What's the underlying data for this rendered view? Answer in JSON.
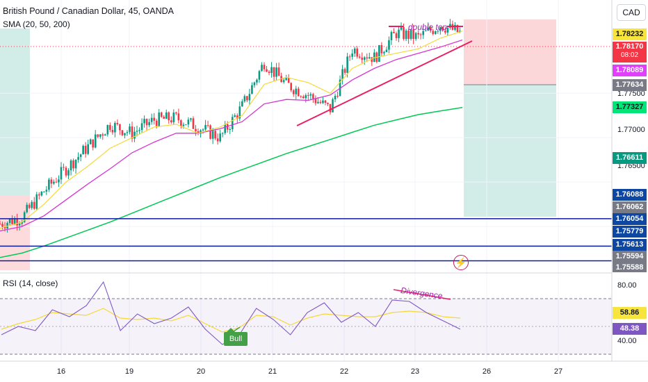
{
  "chart_data": {
    "type": "line",
    "title": "British Pound / Canadian Dollar, 45, OANDA",
    "indicator_label": "SMA (20, 50, 200)",
    "currency": "CAD",
    "y_range": [
      1.755,
      1.7855
    ],
    "x_labels": [
      "16",
      "19",
      "20",
      "21",
      "22",
      "23",
      "26",
      "27"
    ],
    "price_axis_ticks": [
      "1.77500",
      "1.77000",
      "1.76500"
    ],
    "price_tags": [
      {
        "value": "1.78232",
        "color": "#f7e43c",
        "text_color": "#131722"
      },
      {
        "value": "1.78170",
        "sub": "08:02",
        "color": "#f23645",
        "text_color": "#ffffff"
      },
      {
        "value": "1.78089",
        "color": "#e040fb",
        "text_color": "#ffffff"
      },
      {
        "value": "1.77634",
        "color": "#787b86",
        "text_color": "#ffffff"
      },
      {
        "value": "1.77327",
        "color": "#00e676",
        "text_color": "#131722"
      },
      {
        "value": "1.76611",
        "color": "#089981",
        "text_color": "#ffffff"
      },
      {
        "value": "1.76088",
        "color": "#0d47a1",
        "text_color": "#ffffff"
      },
      {
        "value": "1.76062",
        "color": "#787b86",
        "text_color": "#ffffff"
      },
      {
        "value": "1.76054",
        "color": "#0d47a1",
        "text_color": "#ffffff"
      },
      {
        "value": "1.75779",
        "color": "#0d47a1",
        "text_color": "#ffffff"
      },
      {
        "value": "1.75613",
        "color": "#0d47a1",
        "text_color": "#ffffff"
      },
      {
        "value": "1.75594",
        "color": "#787b86",
        "text_color": "#ffffff"
      },
      {
        "value": "1.75588",
        "color": "#787b86",
        "text_color": "#ffffff"
      }
    ],
    "horizontal_levels": [
      1.76088,
      1.75779,
      1.75613
    ],
    "sma_20": [
      1.7598,
      1.7605,
      1.7625,
      1.765,
      1.7668,
      1.7688,
      1.77,
      1.7712,
      1.7715,
      1.7705,
      1.7712,
      1.7725,
      1.776,
      1.7768,
      1.7762,
      1.775,
      1.7778,
      1.779,
      1.7795,
      1.78,
      1.7812,
      1.782
    ],
    "sma_50": [
      1.7595,
      1.76,
      1.7612,
      1.763,
      1.7648,
      1.7665,
      1.7683,
      1.7695,
      1.7705,
      1.7705,
      1.771,
      1.7718,
      1.7738,
      1.7743,
      1.7742,
      1.7748,
      1.7765,
      1.7778,
      1.7788,
      1.7795,
      1.7802,
      1.781
    ],
    "sma_200": [
      1.7565,
      1.757,
      1.7578,
      1.7587,
      1.7596,
      1.7605,
      1.7615,
      1.7625,
      1.7635,
      1.7645,
      1.7655,
      1.7664,
      1.7673,
      1.7682,
      1.769,
      1.7698,
      1.7706,
      1.7714,
      1.772,
      1.7726,
      1.773,
      1.7734
    ],
    "close": [
      1.7603,
      1.761,
      1.764,
      1.7665,
      1.769,
      1.7715,
      1.7705,
      1.772,
      1.7722,
      1.7712,
      1.77,
      1.7735,
      1.7785,
      1.776,
      1.7748,
      1.7732,
      1.78,
      1.779,
      1.7818,
      1.7813,
      1.7827,
      1.7817
    ],
    "position": {
      "entry": 1.77634,
      "stop": 1.78485,
      "target": 1.7597
    },
    "rsi": {
      "label": "RSI (14, close)",
      "ticks": [
        "80.00",
        "40.00"
      ],
      "tags": [
        {
          "value": "58.86",
          "color": "#f7e43c",
          "text_color": "#131722"
        },
        {
          "value": "48.38",
          "color": "#7e57c2",
          "text_color": "#ffffff"
        }
      ],
      "band": [
        30,
        70
      ],
      "values": [
        44,
        50,
        47,
        62,
        57,
        65,
        82,
        47,
        59,
        52,
        56,
        64,
        48,
        37,
        44,
        63,
        55,
        44,
        60,
        67,
        53,
        60,
        50,
        69,
        68,
        60,
        54,
        48
      ],
      "signal": [
        48,
        52,
        55,
        60,
        59,
        58,
        63,
        56,
        55,
        56,
        54,
        58,
        52,
        46,
        49,
        58,
        57,
        51,
        56,
        59,
        58,
        57,
        57,
        60,
        61,
        60,
        57,
        56
      ]
    },
    "annotations": {
      "double_top": "double top",
      "divergence": "Divergence",
      "bull": "Bull"
    }
  },
  "colors": {
    "sma20": "#f5d838",
    "sma50": "#d534d5",
    "sma200": "#00c853",
    "up": "#089981",
    "down": "#f23645",
    "trend": "#e91e63",
    "level": "#0d1aa3",
    "rsi": "#7e57c2"
  }
}
